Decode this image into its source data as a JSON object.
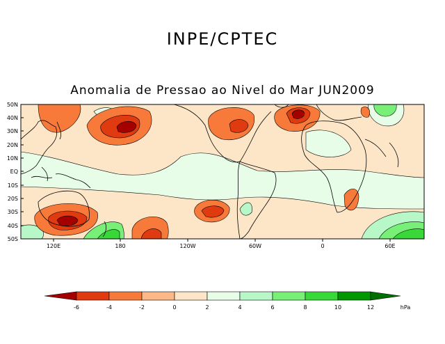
{
  "header": {
    "title": "INPE/CPTEC",
    "subtitle": "Anomalia de Pressao ao Nivel do Mar JUN2009"
  },
  "map": {
    "lat_labels": [
      "50N",
      "40N",
      "30N",
      "20N",
      "10N",
      "EQ",
      "10S",
      "20S",
      "30S",
      "40S",
      "50S"
    ],
    "lon_labels": [
      "120E",
      "180",
      "120W",
      "60W",
      "0",
      "60E"
    ]
  },
  "colorbar": {
    "unit": "hPa",
    "labels": [
      "-6",
      "-4",
      "-2",
      "0",
      "2",
      "4",
      "6",
      "8",
      "10",
      "12"
    ],
    "colors": [
      "#a50000",
      "#e03a10",
      "#f87a3a",
      "#fcb888",
      "#fde6c8",
      "#e8fde8",
      "#b8f8c8",
      "#78f078",
      "#38d838",
      "#18b818",
      "#009800",
      "#006e00"
    ]
  }
}
